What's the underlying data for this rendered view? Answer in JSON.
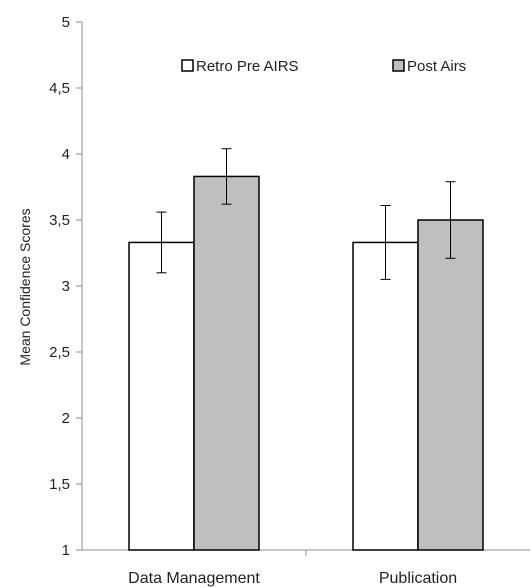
{
  "chart_data": {
    "type": "bar",
    "title": "",
    "xlabel": "",
    "ylabel": "Mean Confidence Scores",
    "ylim": [
      1,
      5
    ],
    "yticks": [
      1,
      1.5,
      2,
      2.5,
      3,
      3.5,
      4,
      4.5,
      5
    ],
    "ytick_labels": [
      "1",
      "1,5",
      "2",
      "2,5",
      "3",
      "3,5",
      "4",
      "4,5",
      "5"
    ],
    "categories": [
      "Data Management",
      "Publication"
    ],
    "series": [
      {
        "name": "Retro Pre AIRS",
        "color": "#ffffff",
        "values": [
          3.33,
          3.33
        ],
        "error": [
          0.23,
          0.28
        ]
      },
      {
        "name": "Post Airs",
        "color": "#bfbfbf",
        "values": [
          3.83,
          3.5
        ],
        "error": [
          0.21,
          0.29
        ]
      }
    ],
    "grid": false,
    "legend_position": "top"
  }
}
